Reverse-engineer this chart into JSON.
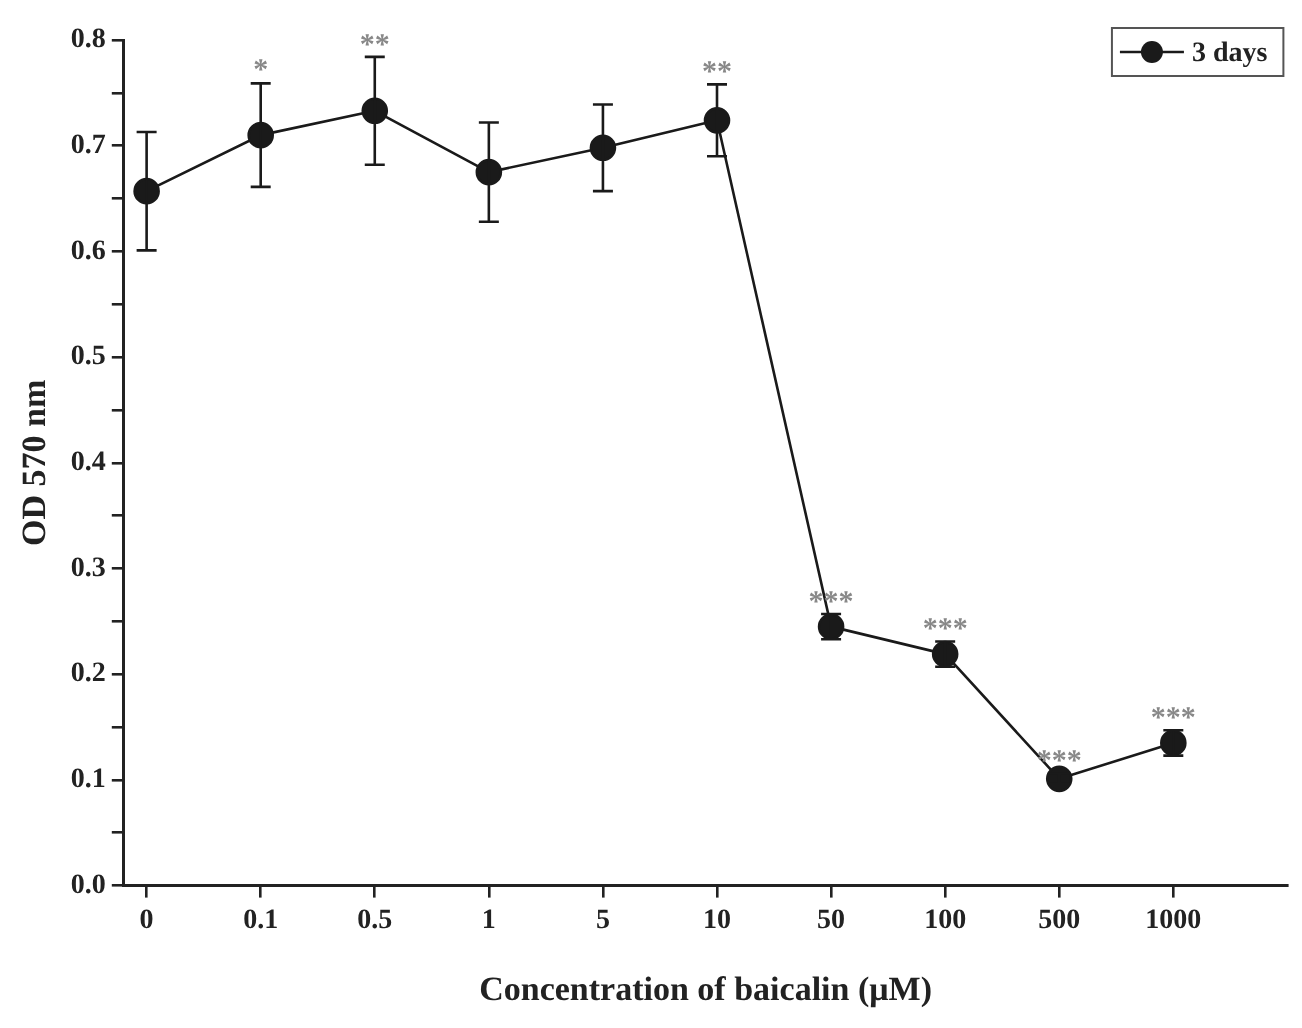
{
  "chart_data": {
    "type": "line",
    "xlabel": "Concentration of baicalin (μM)",
    "ylabel": "OD 570 nm",
    "categories": [
      "0",
      "0.1",
      "0.5",
      "1",
      "5",
      "10",
      "50",
      "100",
      "500",
      "1000"
    ],
    "series": [
      {
        "name": "3 days",
        "color": "#1a1a1a",
        "values": [
          0.657,
          0.71,
          0.733,
          0.675,
          0.698,
          0.724,
          0.245,
          0.219,
          0.101,
          0.135
        ],
        "errors": [
          0.056,
          0.049,
          0.051,
          0.047,
          0.041,
          0.034,
          0.012,
          0.012,
          0.005,
          0.012
        ]
      }
    ],
    "ylim": [
      0,
      0.8
    ],
    "yticks": [
      {
        "value": 0,
        "label": "0.0"
      },
      {
        "value": 0.05,
        "label": null
      },
      0.1,
      {
        "value": 0.15,
        "label": null
      },
      0.2,
      {
        "value": 0.25,
        "label": null
      },
      0.3,
      {
        "value": 0.35,
        "label": null
      },
      0.4,
      {
        "value": 0.45,
        "label": null
      },
      0.5,
      {
        "value": 0.55,
        "label": null
      },
      0.6,
      {
        "value": 0.65,
        "label": null
      },
      0.7,
      {
        "value": 0.75,
        "label": null
      },
      0.8
    ],
    "annotations": [
      {
        "text": "*",
        "x": "0.1",
        "y": 0.76
      },
      {
        "text": "**",
        "x": "0.5",
        "y": 0.784
      },
      {
        "text": "**",
        "x": "10",
        "y": 0.758
      },
      {
        "text": "***",
        "x": "50",
        "y": 0.257
      },
      {
        "text": "***",
        "x": "100",
        "y": 0.231
      },
      {
        "text": "***",
        "x": "500",
        "y": 0.106
      },
      {
        "text": "***",
        "x": "1000",
        "y": 0.147
      }
    ],
    "legend": "top right",
    "marker": "circle",
    "line_style": "solid",
    "grid": false
  }
}
